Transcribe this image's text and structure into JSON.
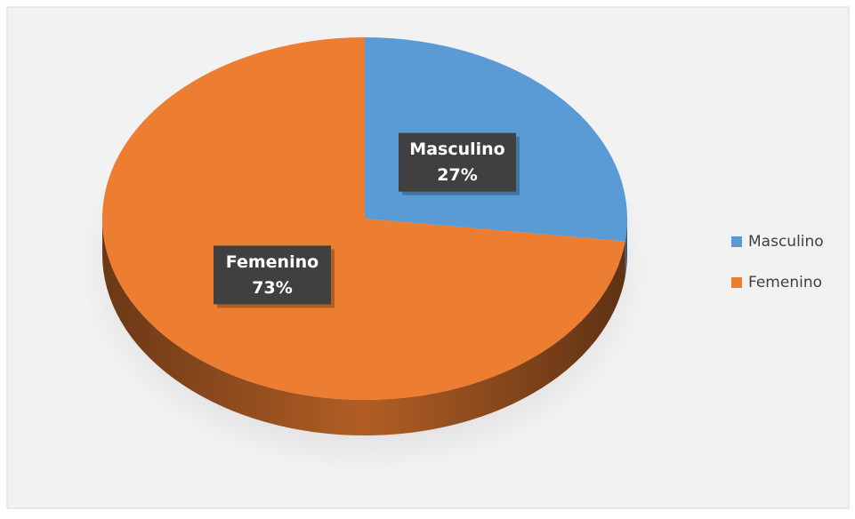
{
  "chart_data": {
    "type": "pie",
    "categories": [
      "Masculino",
      "Femenino"
    ],
    "values": [
      27,
      73
    ],
    "value_labels": [
      "27%",
      "73%"
    ],
    "colors": [
      "#5b9bd5",
      "#ed7d31"
    ],
    "legend": "right"
  }
}
